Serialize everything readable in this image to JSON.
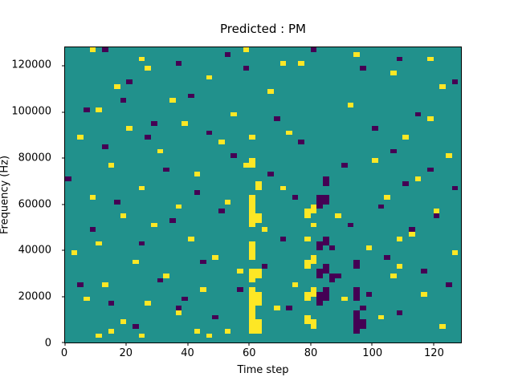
{
  "chart_data": {
    "type": "heatmap",
    "title": "Predicted : PM",
    "xlabel": "Time step",
    "ylabel": "Frequency (Hz)",
    "x_range": [
      0,
      129
    ],
    "y_range": [
      0,
      128000
    ],
    "x_ticks": [
      0,
      20,
      40,
      60,
      80,
      100,
      120
    ],
    "y_ticks": [
      0,
      20000,
      40000,
      60000,
      80000,
      100000,
      120000
    ],
    "grid": false,
    "legend": "none",
    "colors": {
      "background": "#21918c",
      "high": "#fde725",
      "low": "#440154"
    },
    "cell_size": {
      "time_steps": 2,
      "freq_hz": 2000
    },
    "cells_high": [
      [
        60,
        4000
      ],
      [
        60,
        6000
      ],
      [
        60,
        8000
      ],
      [
        60,
        10000
      ],
      [
        60,
        12000
      ],
      [
        60,
        14000
      ],
      [
        60,
        16000
      ],
      [
        60,
        18000
      ],
      [
        60,
        20000
      ],
      [
        60,
        22000
      ],
      [
        60,
        26000
      ],
      [
        60,
        28000
      ],
      [
        60,
        30000
      ],
      [
        60,
        36000
      ],
      [
        60,
        38000
      ],
      [
        60,
        40000
      ],
      [
        60,
        42000
      ],
      [
        60,
        50000
      ],
      [
        60,
        52000
      ],
      [
        60,
        54000
      ],
      [
        60,
        56000
      ],
      [
        60,
        58000
      ],
      [
        60,
        60000
      ],
      [
        60,
        62000
      ],
      [
        60,
        76000
      ],
      [
        60,
        78000
      ],
      [
        60,
        88000
      ],
      [
        62,
        4000
      ],
      [
        62,
        6000
      ],
      [
        62,
        8000
      ],
      [
        62,
        16000
      ],
      [
        62,
        18000
      ],
      [
        62,
        20000
      ],
      [
        62,
        28000
      ],
      [
        62,
        30000
      ],
      [
        62,
        52000
      ],
      [
        62,
        54000
      ],
      [
        62,
        66000
      ],
      [
        62,
        68000
      ],
      [
        78,
        8000
      ],
      [
        78,
        10000
      ],
      [
        78,
        18000
      ],
      [
        78,
        20000
      ],
      [
        78,
        32000
      ],
      [
        78,
        34000
      ],
      [
        78,
        44000
      ],
      [
        78,
        54000
      ],
      [
        78,
        56000
      ],
      [
        80,
        6000
      ],
      [
        80,
        8000
      ],
      [
        80,
        20000
      ],
      [
        80,
        22000
      ],
      [
        80,
        34000
      ],
      [
        80,
        36000
      ],
      [
        80,
        50000
      ],
      [
        80,
        56000
      ],
      [
        80,
        58000
      ],
      [
        2,
        38000
      ],
      [
        4,
        88000
      ],
      [
        6,
        18000
      ],
      [
        8,
        62000
      ],
      [
        8,
        126000
      ],
      [
        10,
        2000
      ],
      [
        10,
        42000
      ],
      [
        10,
        100000
      ],
      [
        12,
        24000
      ],
      [
        14,
        4000
      ],
      [
        14,
        76000
      ],
      [
        16,
        110000
      ],
      [
        18,
        8000
      ],
      [
        18,
        54000
      ],
      [
        20,
        92000
      ],
      [
        22,
        34000
      ],
      [
        24,
        2000
      ],
      [
        24,
        66000
      ],
      [
        24,
        122000
      ],
      [
        26,
        16000
      ],
      [
        26,
        118000
      ],
      [
        28,
        50000
      ],
      [
        30,
        82000
      ],
      [
        32,
        28000
      ],
      [
        34,
        104000
      ],
      [
        36,
        12000
      ],
      [
        36,
        58000
      ],
      [
        38,
        94000
      ],
      [
        40,
        44000
      ],
      [
        42,
        4000
      ],
      [
        42,
        72000
      ],
      [
        44,
        22000
      ],
      [
        46,
        2000
      ],
      [
        46,
        114000
      ],
      [
        48,
        36000
      ],
      [
        50,
        86000
      ],
      [
        52,
        4000
      ],
      [
        52,
        60000
      ],
      [
        54,
        98000
      ],
      [
        56,
        30000
      ],
      [
        58,
        76000
      ],
      [
        58,
        126000
      ],
      [
        64,
        48000
      ],
      [
        66,
        108000
      ],
      [
        68,
        14000
      ],
      [
        70,
        66000
      ],
      [
        70,
        120000
      ],
      [
        72,
        90000
      ],
      [
        74,
        24000
      ],
      [
        76,
        120000
      ],
      [
        88,
        54000
      ],
      [
        90,
        18000
      ],
      [
        92,
        102000
      ],
      [
        94,
        124000
      ],
      [
        98,
        40000
      ],
      [
        100,
        78000
      ],
      [
        102,
        10000
      ],
      [
        104,
        62000
      ],
      [
        106,
        28000
      ],
      [
        106,
        116000
      ],
      [
        108,
        32000
      ],
      [
        108,
        44000
      ],
      [
        110,
        88000
      ],
      [
        112,
        46000
      ],
      [
        114,
        70000
      ],
      [
        116,
        20000
      ],
      [
        118,
        96000
      ],
      [
        118,
        122000
      ],
      [
        120,
        56000
      ],
      [
        122,
        6000
      ],
      [
        122,
        110000
      ],
      [
        124,
        80000
      ],
      [
        126,
        38000
      ]
    ],
    "cells_low": [
      [
        82,
        16000
      ],
      [
        82,
        18000
      ],
      [
        82,
        20000
      ],
      [
        82,
        28000
      ],
      [
        82,
        30000
      ],
      [
        82,
        40000
      ],
      [
        82,
        42000
      ],
      [
        82,
        58000
      ],
      [
        82,
        60000
      ],
      [
        82,
        62000
      ],
      [
        84,
        18000
      ],
      [
        84,
        20000
      ],
      [
        84,
        22000
      ],
      [
        84,
        30000
      ],
      [
        84,
        32000
      ],
      [
        84,
        42000
      ],
      [
        84,
        44000
      ],
      [
        84,
        60000
      ],
      [
        84,
        62000
      ],
      [
        84,
        68000
      ],
      [
        84,
        70000
      ],
      [
        86,
        26000
      ],
      [
        86,
        28000
      ],
      [
        86,
        40000
      ],
      [
        94,
        4000
      ],
      [
        94,
        6000
      ],
      [
        94,
        8000
      ],
      [
        94,
        10000
      ],
      [
        94,
        12000
      ],
      [
        94,
        18000
      ],
      [
        94,
        20000
      ],
      [
        94,
        22000
      ],
      [
        94,
        32000
      ],
      [
        94,
        34000
      ],
      [
        96,
        6000
      ],
      [
        96,
        8000
      ],
      [
        96,
        14000
      ],
      [
        0,
        70000
      ],
      [
        4,
        24000
      ],
      [
        6,
        100000
      ],
      [
        8,
        48000
      ],
      [
        12,
        84000
      ],
      [
        12,
        126000
      ],
      [
        14,
        16000
      ],
      [
        16,
        60000
      ],
      [
        18,
        104000
      ],
      [
        20,
        112000
      ],
      [
        22,
        6000
      ],
      [
        24,
        42000
      ],
      [
        26,
        88000
      ],
      [
        28,
        94000
      ],
      [
        30,
        26000
      ],
      [
        32,
        74000
      ],
      [
        34,
        52000
      ],
      [
        36,
        14000
      ],
      [
        36,
        120000
      ],
      [
        38,
        18000
      ],
      [
        40,
        106000
      ],
      [
        42,
        64000
      ],
      [
        44,
        34000
      ],
      [
        46,
        90000
      ],
      [
        48,
        10000
      ],
      [
        50,
        56000
      ],
      [
        52,
        124000
      ],
      [
        54,
        80000
      ],
      [
        56,
        22000
      ],
      [
        58,
        118000
      ],
      [
        64,
        32000
      ],
      [
        66,
        72000
      ],
      [
        68,
        96000
      ],
      [
        70,
        44000
      ],
      [
        72,
        14000
      ],
      [
        74,
        62000
      ],
      [
        76,
        86000
      ],
      [
        80,
        126000
      ],
      [
        88,
        28000
      ],
      [
        90,
        76000
      ],
      [
        92,
        50000
      ],
      [
        96,
        118000
      ],
      [
        98,
        20000
      ],
      [
        100,
        92000
      ],
      [
        102,
        58000
      ],
      [
        104,
        36000
      ],
      [
        106,
        82000
      ],
      [
        108,
        12000
      ],
      [
        108,
        122000
      ],
      [
        110,
        68000
      ],
      [
        112,
        48000
      ],
      [
        114,
        98000
      ],
      [
        116,
        30000
      ],
      [
        118,
        74000
      ],
      [
        120,
        54000
      ],
      [
        124,
        24000
      ],
      [
        126,
        66000
      ],
      [
        126,
        112000
      ]
    ]
  }
}
